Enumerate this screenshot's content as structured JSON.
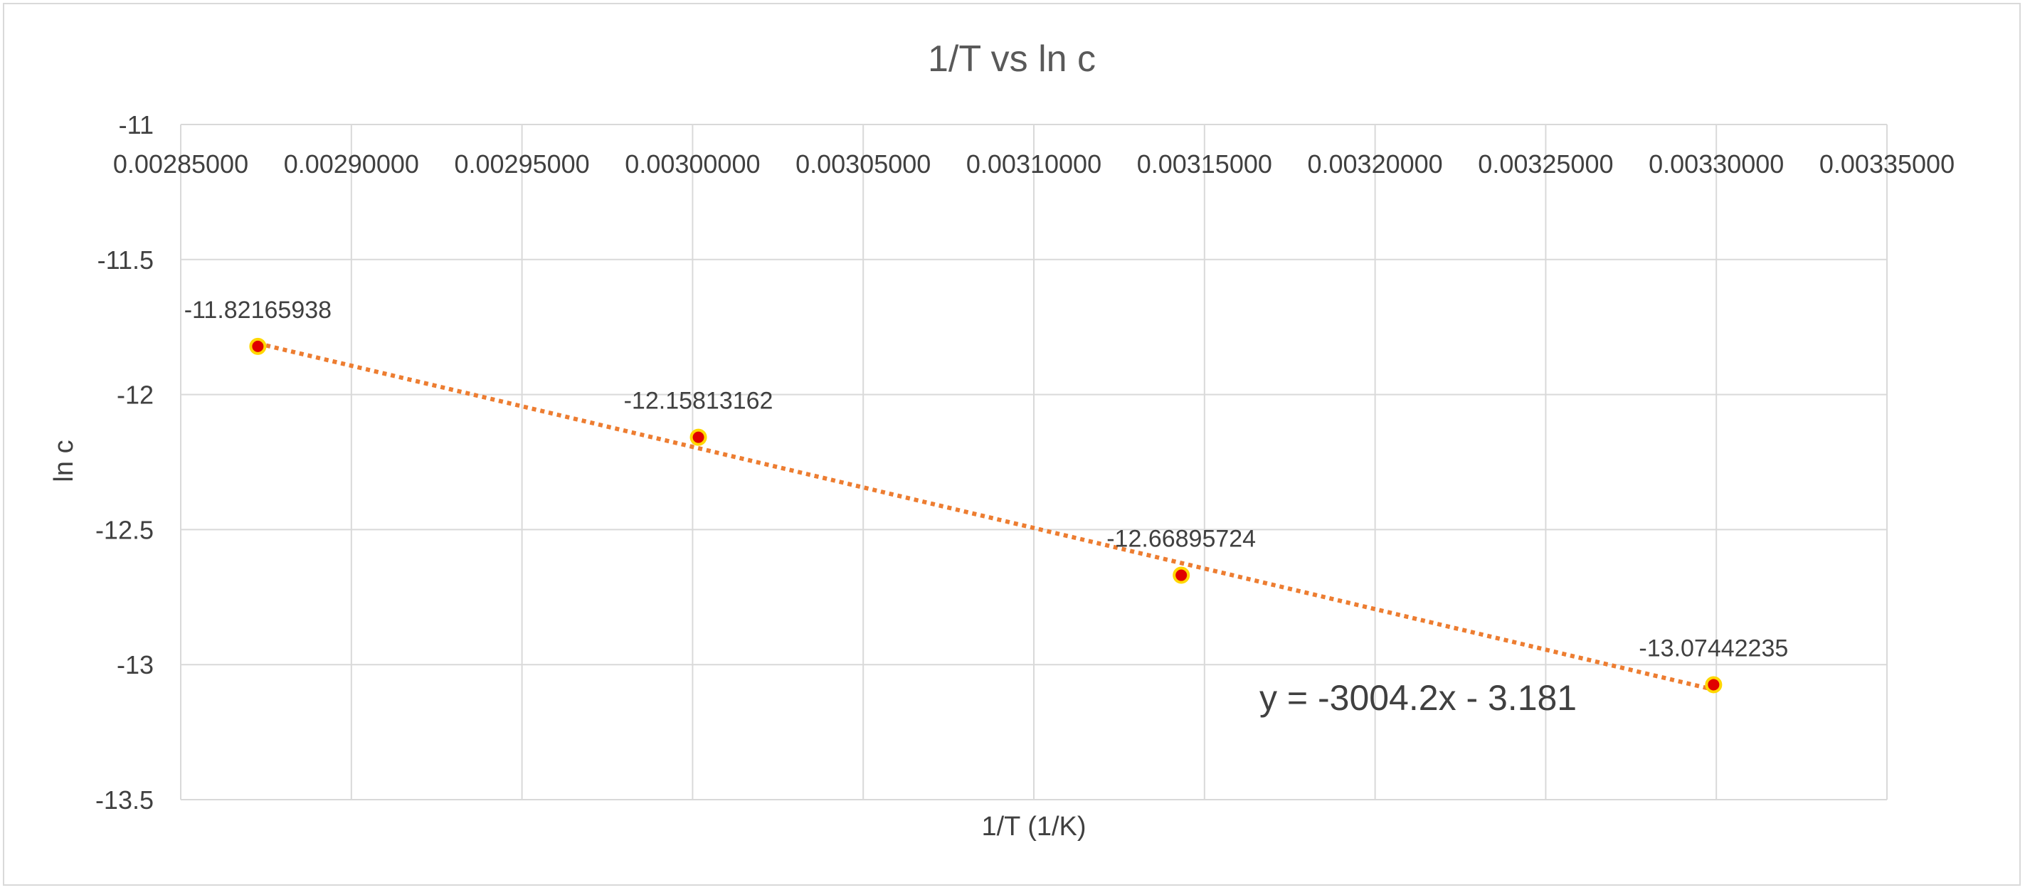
{
  "chart_data": {
    "type": "scatter",
    "title": "1/T vs ln c",
    "xlabel": "1/T (1/K)",
    "ylabel": "ln c",
    "xlim": [
      0.00285,
      0.00335
    ],
    "ylim": [
      -13.5,
      -11
    ],
    "x_ticks": [
      0.00285,
      0.0029,
      0.00295,
      0.003,
      0.00305,
      0.0031,
      0.00315,
      0.0032,
      0.00325,
      0.0033,
      0.00335
    ],
    "x_tick_labels": [
      "0.00285000",
      "0.00290000",
      "0.00295000",
      "0.00300000",
      "0.00305000",
      "0.00310000",
      "0.00315000",
      "0.00320000",
      "0.00325000",
      "0.00330000",
      "0.00335000"
    ],
    "y_ticks": [
      -11,
      -11.5,
      -12,
      -12.5,
      -13,
      -13.5
    ],
    "y_tick_labels": [
      "-11",
      "-11.5",
      "-12",
      "-12.5",
      "-13",
      "-13.5"
    ],
    "grid": true,
    "legend": false,
    "series": [
      {
        "x": [
          0.0028726,
          0.0030017,
          0.0031432,
          0.0032992
        ],
        "y": [
          -11.82165938,
          -12.15813162,
          -12.66895724,
          -13.07442235
        ],
        "data_labels": [
          "-11.82165938",
          "-12.15813162",
          "-12.66895724",
          "-13.07442235"
        ],
        "marker_fill": "#e00000",
        "marker_edge": "#ffd700"
      }
    ],
    "trendline": {
      "type": "linear",
      "slope": -3004.2,
      "intercept": -3.181,
      "color": "#ed7d31",
      "style": "dotted",
      "equation_label": "y = -3004.2x - 3.181"
    },
    "colors": {
      "grid": "#d9d9d9",
      "text": "#404040",
      "title": "#595959"
    }
  }
}
